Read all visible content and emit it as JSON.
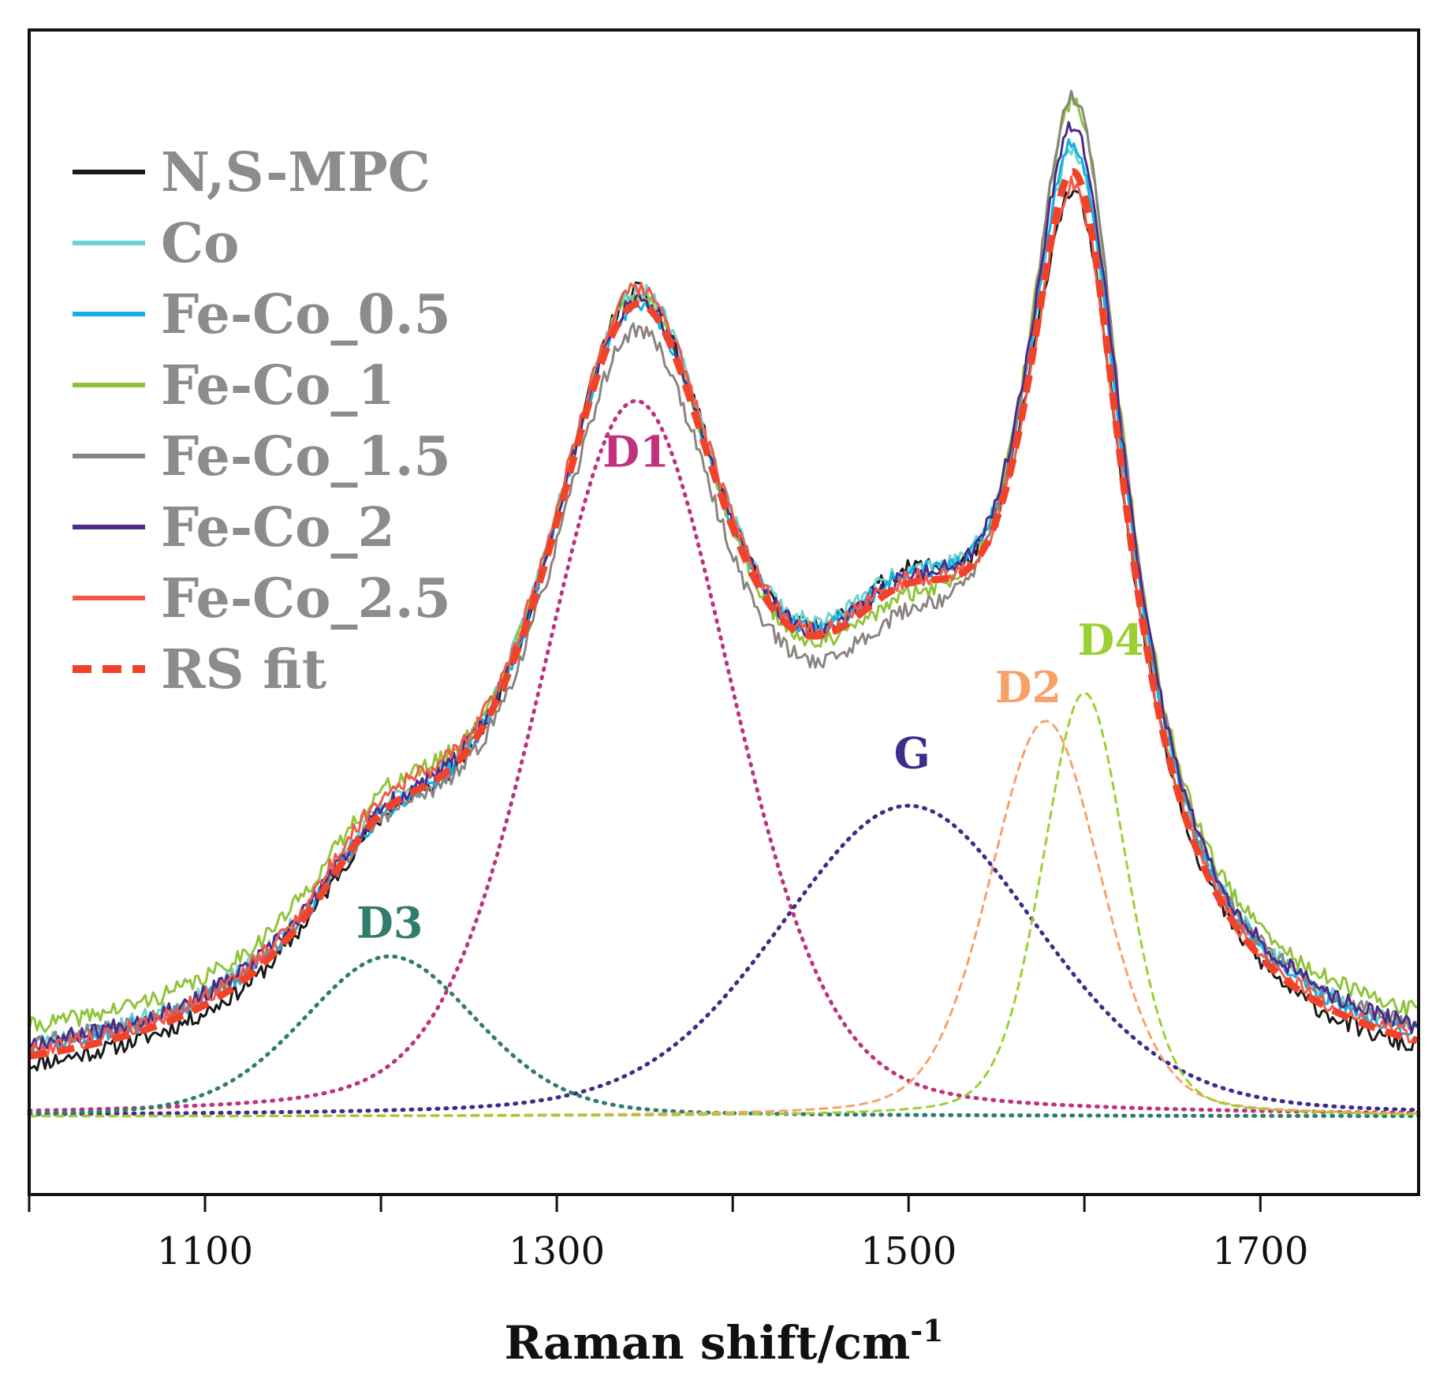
{
  "chart_data": {
    "type": "line",
    "title": "",
    "xlabel": "Raman shift/cm",
    "xlabel_superscript": "-1",
    "ylabel": "",
    "xlim": [
      1000,
      1790
    ],
    "ylim": [
      0,
      1.06
    ],
    "xticks": [
      1100,
      1300,
      1500,
      1700
    ],
    "xtick_labels": [
      "1100",
      "1300",
      "1500",
      "1700"
    ],
    "legend_position": "top-left",
    "series": [
      {
        "name": "N,S-MPC",
        "color": "#1a1a1a",
        "style": "solid",
        "noise_seed": 11,
        "baseline": 0.005,
        "peaks": [
          [
            1200,
            0.14,
            55
          ],
          [
            1345,
            0.78,
            70
          ],
          [
            1500,
            0.33,
            70
          ],
          [
            1595,
            0.8,
            38
          ]
        ]
      },
      {
        "name": "Co",
        "color": "#6cd3cf",
        "style": "solid",
        "noise_seed": 23,
        "baseline": 0.03,
        "peaks": [
          [
            1200,
            0.13,
            55
          ],
          [
            1345,
            0.76,
            70
          ],
          [
            1500,
            0.31,
            70
          ],
          [
            1595,
            0.83,
            37
          ]
        ]
      },
      {
        "name": "Fe-Co_0.5",
        "color": "#12b0e6",
        "style": "solid",
        "noise_seed": 37,
        "baseline": 0.025,
        "peaks": [
          [
            1200,
            0.13,
            55
          ],
          [
            1345,
            0.75,
            70
          ],
          [
            1500,
            0.31,
            70
          ],
          [
            1595,
            0.84,
            37
          ]
        ]
      },
      {
        "name": "Fe-Co_1",
        "color": "#8fc43a",
        "style": "solid",
        "noise_seed": 41,
        "baseline": 0.05,
        "peaks": [
          [
            1200,
            0.14,
            55
          ],
          [
            1345,
            0.74,
            68
          ],
          [
            1500,
            0.27,
            70
          ],
          [
            1595,
            0.88,
            36
          ]
        ]
      },
      {
        "name": "Fe-Co_1.5",
        "color": "#8a8380",
        "style": "solid",
        "noise_seed": 53,
        "baseline": 0.035,
        "peaks": [
          [
            1200,
            0.13,
            55
          ],
          [
            1345,
            0.72,
            68
          ],
          [
            1500,
            0.27,
            70
          ],
          [
            1595,
            0.9,
            36
          ]
        ]
      },
      {
        "name": "Fe-Co_2",
        "color": "#4b2a8c",
        "style": "solid",
        "noise_seed": 67,
        "baseline": 0.03,
        "peaks": [
          [
            1200,
            0.13,
            55
          ],
          [
            1345,
            0.75,
            70
          ],
          [
            1500,
            0.3,
            70
          ],
          [
            1595,
            0.86,
            37
          ]
        ]
      },
      {
        "name": "Fe-Co_2.5",
        "color": "#f15a4a",
        "style": "solid",
        "noise_seed": 79,
        "baseline": 0.02,
        "peaks": [
          [
            1200,
            0.15,
            55
          ],
          [
            1345,
            0.77,
            70
          ],
          [
            1500,
            0.31,
            70
          ],
          [
            1595,
            0.8,
            37
          ]
        ]
      },
      {
        "name": "RS fit",
        "color": "#f0432a",
        "style": "dashed",
        "noise_seed": 0,
        "baseline": 0.015,
        "peaks": [
          [
            1200,
            0.14,
            55
          ],
          [
            1345,
            0.76,
            70
          ],
          [
            1500,
            0.31,
            70
          ],
          [
            1595,
            0.82,
            37
          ]
        ]
      }
    ],
    "fit_components": [
      {
        "name": "D1",
        "center": 1345,
        "height": 0.76,
        "width": 55,
        "color": "#c0327e",
        "label_x": 1345,
        "label_y": 0.69
      },
      {
        "name": "G",
        "center": 1500,
        "height": 0.33,
        "width": 75,
        "color": "#3f2b8a",
        "label_x": 1502,
        "label_y": 0.37
      },
      {
        "name": "D3",
        "center": 1205,
        "height": 0.17,
        "width": 50,
        "color": "#2f7d6a",
        "label_x": 1205,
        "label_y": 0.19
      },
      {
        "name": "D2",
        "center": 1578,
        "height": 0.42,
        "width": 32,
        "color": "#f7a169",
        "label_x": 1568,
        "label_y": 0.44
      },
      {
        "name": "D4",
        "center": 1600,
        "height": 0.45,
        "width": 24,
        "color": "#9bd032",
        "label_x": 1615,
        "label_y": 0.49
      }
    ]
  }
}
